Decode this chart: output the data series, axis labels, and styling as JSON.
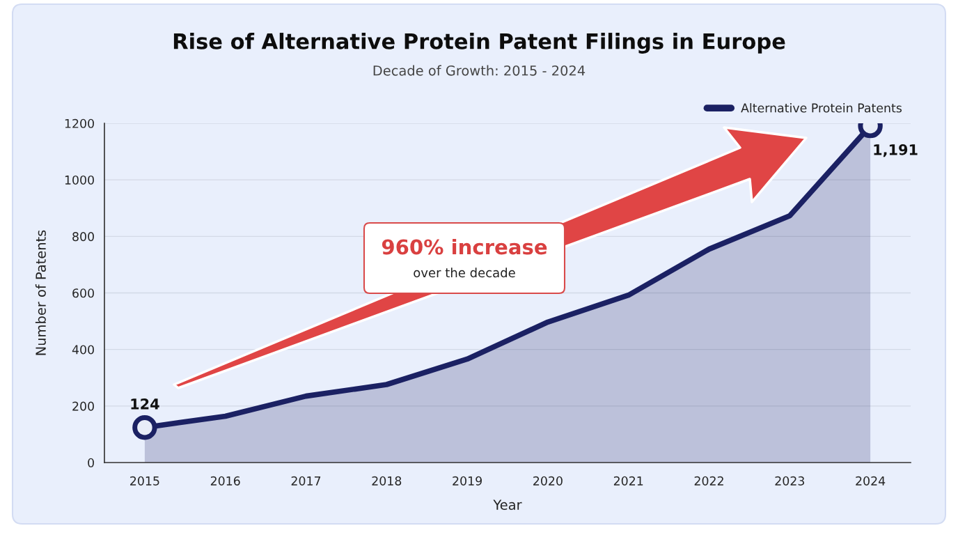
{
  "chart_data": {
    "type": "area",
    "title": "Rise of Alternative Protein Patent Filings in Europe",
    "subtitle": "Decade of Growth: 2015 - 2024",
    "xlabel": "Year",
    "ylabel": "Number of Patents",
    "categories": [
      "2015",
      "2016",
      "2017",
      "2018",
      "2019",
      "2020",
      "2021",
      "2022",
      "2023",
      "2024"
    ],
    "series": [
      {
        "name": "Alternative Protein Patents",
        "color": "#1b2163",
        "values": [
          124,
          164,
          235,
          276,
          366,
          497,
          592,
          755,
          873,
          1191
        ]
      },
      {
        "type": "scatter",
        "values": [
          124,
          null,
          null,
          null,
          null,
          null,
          null,
          null,
          null,
          1191
        ],
        "color": "#1b2163",
        "marker": "circle",
        "value_labels": [
          "124",
          null,
          null,
          null,
          null,
          null,
          null,
          null,
          null,
          "1,191"
        ]
      }
    ],
    "ylim": [
      0,
      1200
    ],
    "yticks": [
      0,
      200,
      400,
      600,
      800,
      1000,
      1200
    ],
    "grid": "y",
    "legend": "top right",
    "annotations": [
      "960% increase",
      "over the decade"
    ]
  }
}
